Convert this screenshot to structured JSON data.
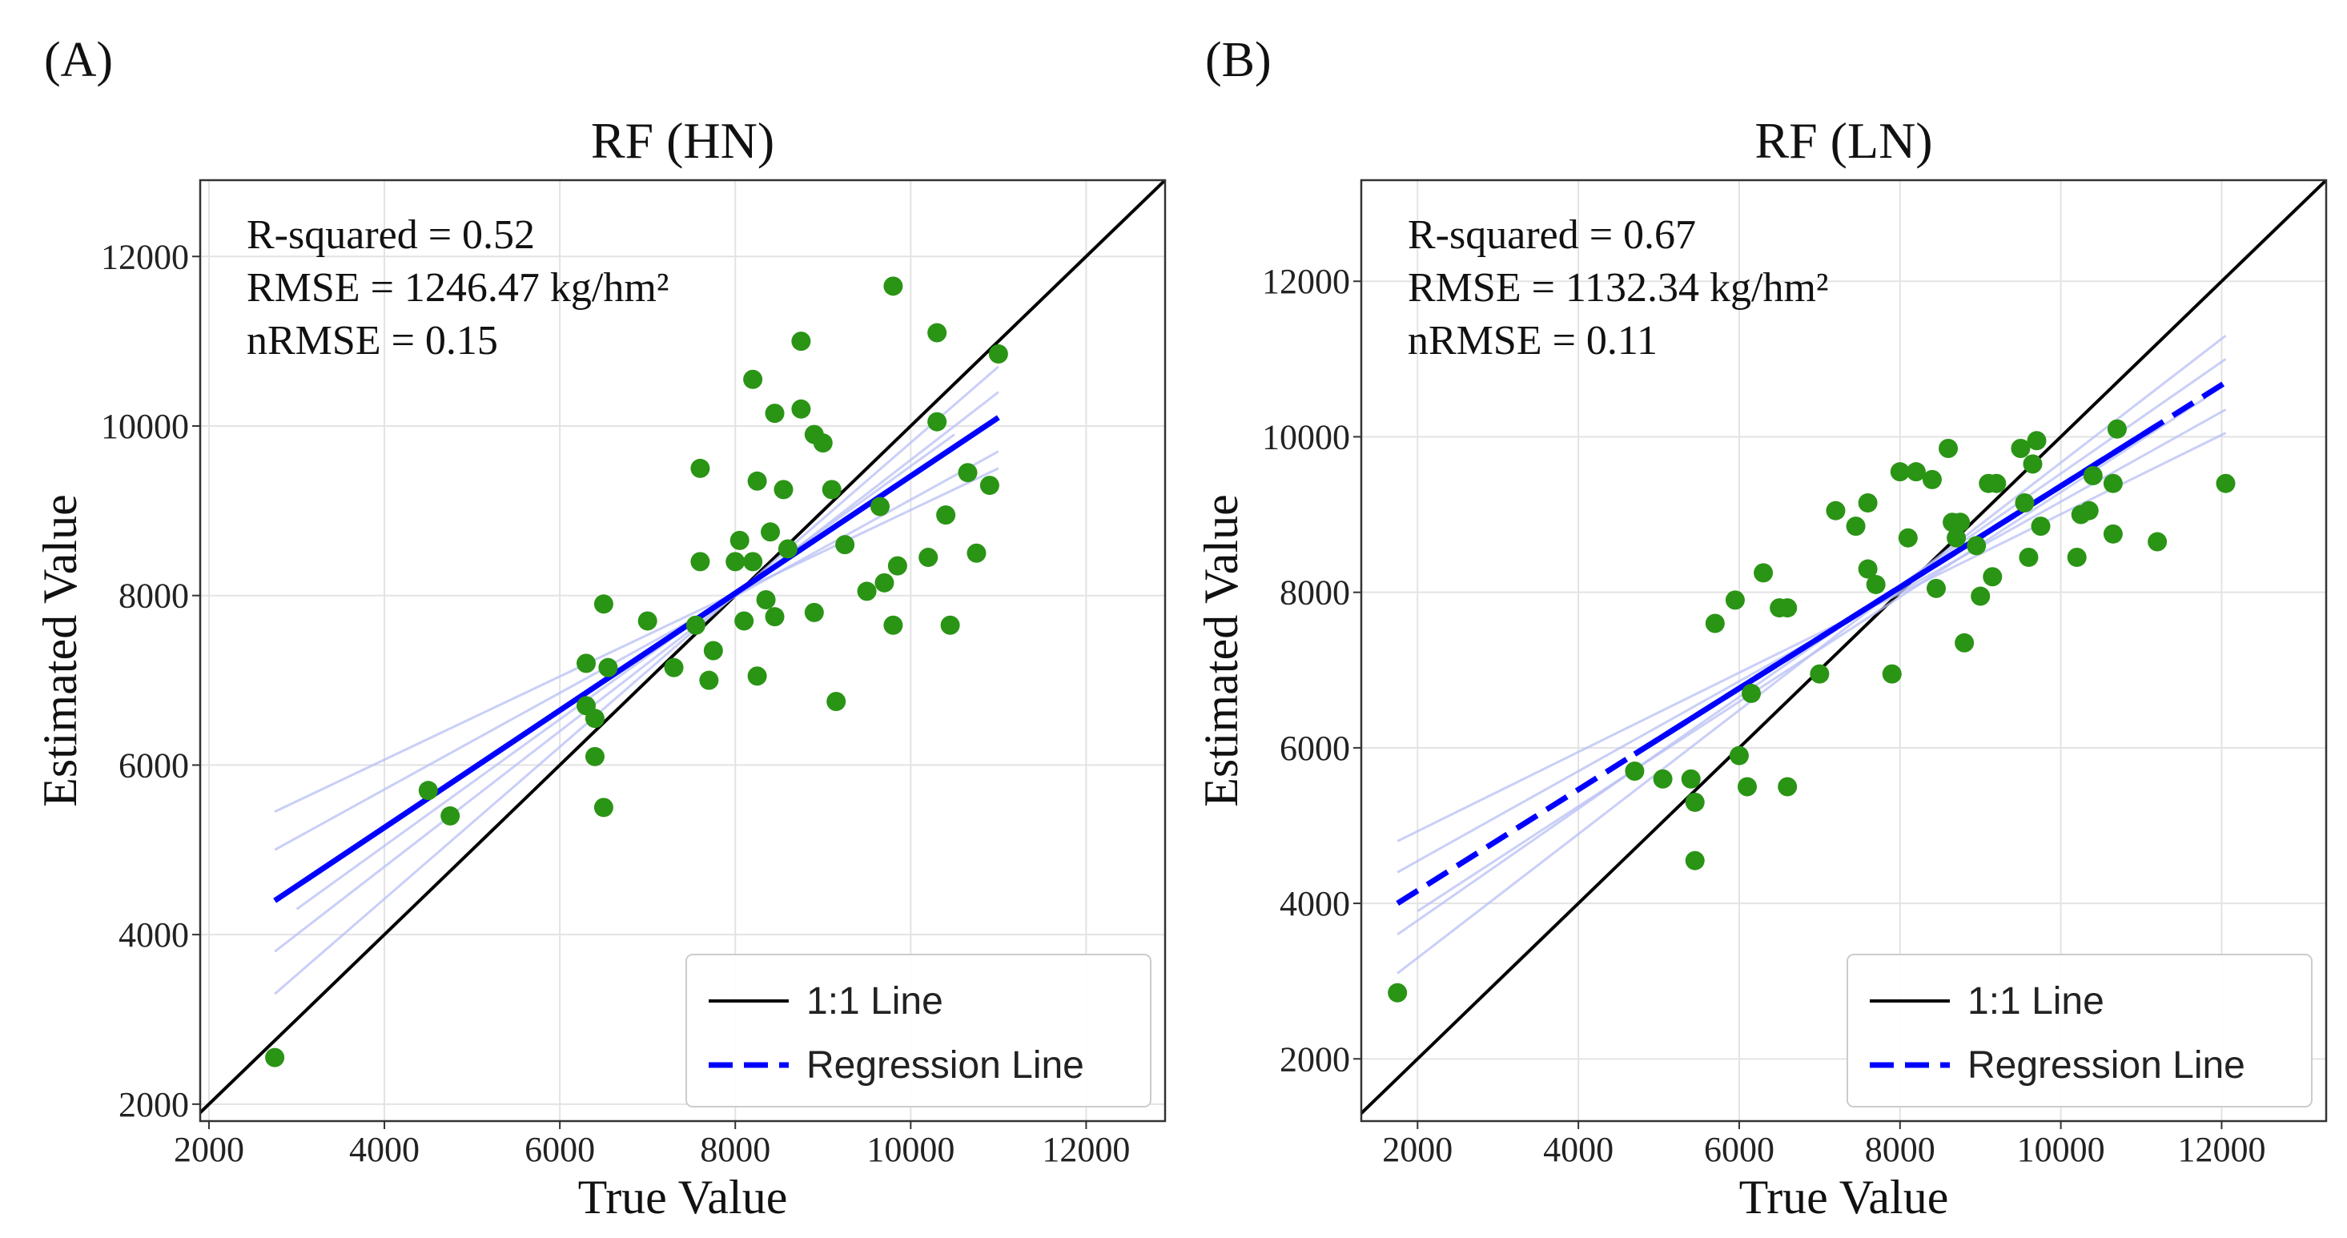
{
  "chart_data": [
    {
      "type": "scatter",
      "panel_label": "(A)",
      "title": "RF (HN)",
      "xlabel": "True Value",
      "ylabel": "Estimated Value",
      "xlim": [
        1900,
        12900
      ],
      "ylim": [
        1800,
        12900
      ],
      "xticks": [
        2000,
        4000,
        6000,
        8000,
        10000,
        12000
      ],
      "yticks": [
        2000,
        4000,
        6000,
        8000,
        10000,
        12000
      ],
      "grid": true,
      "stats": [
        "R-squared = 0.52",
        "RMSE = 1246.47 kg/hm²",
        "nRMSE = 0.15"
      ],
      "legend": {
        "position": "lower-right",
        "entries": [
          "1:1 Line",
          "Regression Line"
        ]
      },
      "identity_line": {
        "label": "1:1 Line",
        "color": "#000000"
      },
      "regression_line": {
        "label": "Regression Line",
        "color": "#0000ff",
        "x": [
          2750,
          11000
        ],
        "y": [
          4400,
          10100
        ]
      },
      "confidence_band": {
        "color": "#b9bff5",
        "lines": [
          [
            [
              2750,
              5450
            ],
            [
              11000,
              9500
            ]
          ],
          [
            [
              2750,
              3300
            ],
            [
              11000,
              10700
            ]
          ],
          [
            [
              2750,
              5000
            ],
            [
              11000,
              9700
            ]
          ],
          [
            [
              2750,
              3800
            ],
            [
              11000,
              10400
            ]
          ],
          [
            [
              3000,
              4300
            ],
            [
              10500,
              9900
            ]
          ]
        ]
      },
      "point_color": "#2a9415",
      "points": [
        [
          2750,
          2550
        ],
        [
          4500,
          5700
        ],
        [
          4750,
          5400
        ],
        [
          6300,
          7200
        ],
        [
          6300,
          6700
        ],
        [
          6400,
          6550
        ],
        [
          6400,
          6100
        ],
        [
          6500,
          7900
        ],
        [
          6550,
          7150
        ],
        [
          6500,
          5500
        ],
        [
          7000,
          7700
        ],
        [
          7300,
          7150
        ],
        [
          7550,
          7650
        ],
        [
          7600,
          9500
        ],
        [
          7600,
          8400
        ],
        [
          7700,
          7000
        ],
        [
          7750,
          7350
        ],
        [
          8000,
          8400
        ],
        [
          8050,
          8650
        ],
        [
          8100,
          7700
        ],
        [
          8200,
          10550
        ],
        [
          8200,
          8400
        ],
        [
          8250,
          9350
        ],
        [
          8250,
          7050
        ],
        [
          8350,
          7950
        ],
        [
          8400,
          8750
        ],
        [
          8450,
          10150
        ],
        [
          8450,
          7750
        ],
        [
          8550,
          9250
        ],
        [
          8600,
          8550
        ],
        [
          8750,
          10200
        ],
        [
          8750,
          11000
        ],
        [
          8900,
          9900
        ],
        [
          8900,
          7800
        ],
        [
          9000,
          9800
        ],
        [
          9100,
          9250
        ],
        [
          9150,
          6750
        ],
        [
          9250,
          8600
        ],
        [
          9500,
          8050
        ],
        [
          9650,
          9050
        ],
        [
          9700,
          8150
        ],
        [
          9800,
          11650
        ],
        [
          9800,
          7650
        ],
        [
          9850,
          8350
        ],
        [
          10200,
          8450
        ],
        [
          10300,
          10050
        ],
        [
          10300,
          11100
        ],
        [
          10400,
          8950
        ],
        [
          10450,
          7650
        ],
        [
          10650,
          9450
        ],
        [
          10750,
          8500
        ],
        [
          10900,
          9300
        ],
        [
          11000,
          10850
        ]
      ]
    },
    {
      "type": "scatter",
      "panel_label": "(B)",
      "title": "RF (LN)",
      "xlabel": "True Value",
      "ylabel": "Estimated Value",
      "xlim": [
        1300,
        13300
      ],
      "ylim": [
        1200,
        13300
      ],
      "xticks": [
        2000,
        4000,
        6000,
        8000,
        10000,
        12000
      ],
      "yticks": [
        2000,
        4000,
        6000,
        8000,
        10000,
        12000
      ],
      "grid": true,
      "stats": [
        "R-squared = 0.67",
        "RMSE = 1132.34 kg/hm²",
        "nRMSE = 0.11"
      ],
      "legend": {
        "position": "lower-right",
        "entries": [
          "1:1 Line",
          "Regression Line"
        ]
      },
      "identity_line": {
        "label": "1:1 Line",
        "color": "#000000"
      },
      "regression_line": {
        "label": "Regression Line",
        "color": "#0000ff",
        "x": [
          1750,
          12050
        ],
        "y": [
          4000,
          10700
        ],
        "solid_x_range": [
          4700,
          11200
        ]
      },
      "confidence_band": {
        "color": "#b9bff5",
        "lines": [
          [
            [
              1750,
              4800
            ],
            [
              12050,
              10050
            ]
          ],
          [
            [
              1750,
              3100
            ],
            [
              12050,
              11300
            ]
          ],
          [
            [
              1750,
              4400
            ],
            [
              12050,
              10350
            ]
          ],
          [
            [
              1750,
              3600
            ],
            [
              12050,
              11000
            ]
          ],
          [
            [
              2000,
              3900
            ],
            [
              11800,
              10500
            ]
          ]
        ]
      },
      "point_color": "#2a9415",
      "points": [
        [
          1750,
          2850
        ],
        [
          4700,
          5700
        ],
        [
          5050,
          5600
        ],
        [
          5400,
          5600
        ],
        [
          5450,
          5300
        ],
        [
          5450,
          4550
        ],
        [
          5700,
          7600
        ],
        [
          5950,
          7900
        ],
        [
          6000,
          5900
        ],
        [
          6100,
          5500
        ],
        [
          6150,
          6700
        ],
        [
          6300,
          8250
        ],
        [
          6500,
          7800
        ],
        [
          6600,
          7800
        ],
        [
          6600,
          5500
        ],
        [
          7000,
          6950
        ],
        [
          7200,
          9050
        ],
        [
          7450,
          8850
        ],
        [
          7600,
          9150
        ],
        [
          7600,
          8300
        ],
        [
          7700,
          8100
        ],
        [
          7900,
          6950
        ],
        [
          8000,
          9550
        ],
        [
          8100,
          8700
        ],
        [
          8200,
          9550
        ],
        [
          8400,
          9450
        ],
        [
          8450,
          8050
        ],
        [
          8600,
          9850
        ],
        [
          8650,
          8900
        ],
        [
          8700,
          8700
        ],
        [
          8750,
          8900
        ],
        [
          8800,
          7350
        ],
        [
          8950,
          8600
        ],
        [
          9000,
          7950
        ],
        [
          9100,
          9400
        ],
        [
          9150,
          8200
        ],
        [
          9200,
          9400
        ],
        [
          9500,
          9850
        ],
        [
          9550,
          9150
        ],
        [
          9600,
          8450
        ],
        [
          9650,
          9650
        ],
        [
          9700,
          9950
        ],
        [
          9750,
          8850
        ],
        [
          10200,
          8450
        ],
        [
          10250,
          9000
        ],
        [
          10350,
          9050
        ],
        [
          10400,
          9500
        ],
        [
          10650,
          8750
        ],
        [
          10650,
          9400
        ],
        [
          10700,
          10100
        ],
        [
          11200,
          8650
        ],
        [
          12050,
          9400
        ]
      ]
    }
  ]
}
